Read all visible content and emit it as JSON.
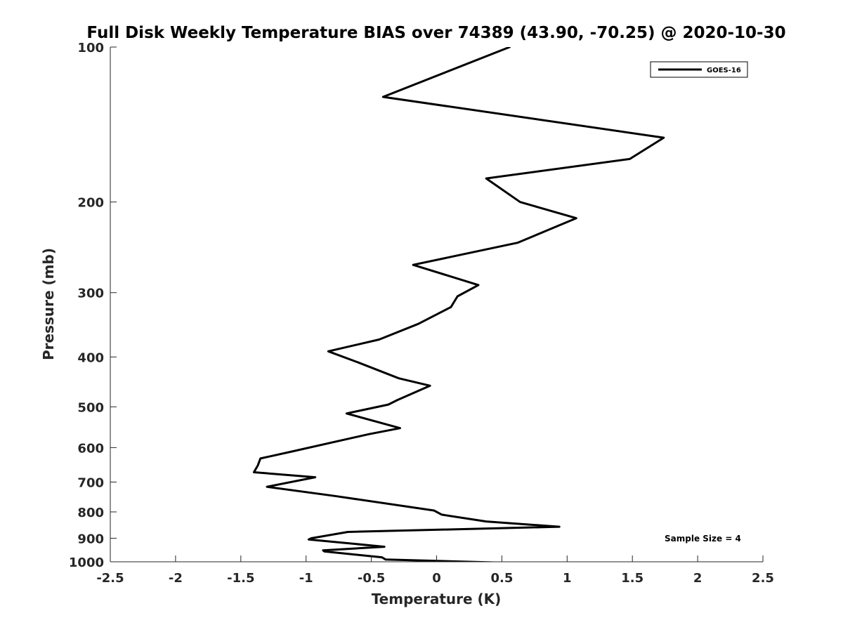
{
  "chart_data": {
    "type": "line",
    "title": "Full Disk Weekly Temperature BIAS over 74389 (43.90, -70.25) @ 2020-10-30",
    "xlabel": "Temperature (K)",
    "ylabel": "Pressure (mb)",
    "xlim": [
      -2.5,
      2.5
    ],
    "ylim": [
      100,
      1000
    ],
    "y_scale": "log",
    "y_reversed": true,
    "x_ticks": [
      "-2.5",
      "-2",
      "-1.5",
      "-1",
      "-0.5",
      "0",
      "0.5",
      "1",
      "1.5",
      "2",
      "2.5"
    ],
    "x_tick_values": [
      -2.5,
      -2,
      -1.5,
      -1,
      -0.5,
      0,
      0.5,
      1,
      1.5,
      2,
      2.5
    ],
    "y_ticks": [
      "100",
      "200",
      "300",
      "400",
      "500",
      "600",
      "700",
      "800",
      "900",
      "1000"
    ],
    "y_tick_values": [
      100,
      200,
      300,
      400,
      500,
      600,
      700,
      800,
      900,
      1000
    ],
    "grid": false,
    "legend": {
      "position": "top-right",
      "entries": [
        "GOES-16"
      ]
    },
    "annotation": "Sample Size = 4",
    "series": [
      {
        "name": "GOES-16",
        "color": "#000000",
        "x": [
          0.56,
          -0.41,
          1.74,
          1.48,
          0.38,
          0.64,
          1.07,
          0.62,
          -0.18,
          0.32,
          0.16,
          0.11,
          -0.14,
          -0.44,
          -0.83,
          -0.6,
          -0.29,
          -0.05,
          -0.3,
          -0.37,
          -0.69,
          -0.28,
          -0.52,
          -1.1,
          -1.35,
          -1.37,
          -1.4,
          -0.93,
          -1.3,
          -0.78,
          -0.02,
          0.04,
          0.38,
          0.94,
          -0.68,
          -0.96,
          -0.98,
          -0.4,
          -0.87,
          -0.86,
          -0.42,
          -0.39,
          0.56,
          0.36
        ],
        "y": [
          100,
          125,
          150,
          165,
          180,
          200,
          215,
          240,
          265,
          290,
          305,
          320,
          345,
          370,
          390,
          410,
          440,
          455,
          485,
          495,
          515,
          550,
          565,
          610,
          630,
          650,
          670,
          685,
          715,
          745,
          795,
          810,
          835,
          855,
          875,
          900,
          905,
          935,
          950,
          955,
          980,
          990,
          1005,
          1015
        ]
      }
    ]
  }
}
